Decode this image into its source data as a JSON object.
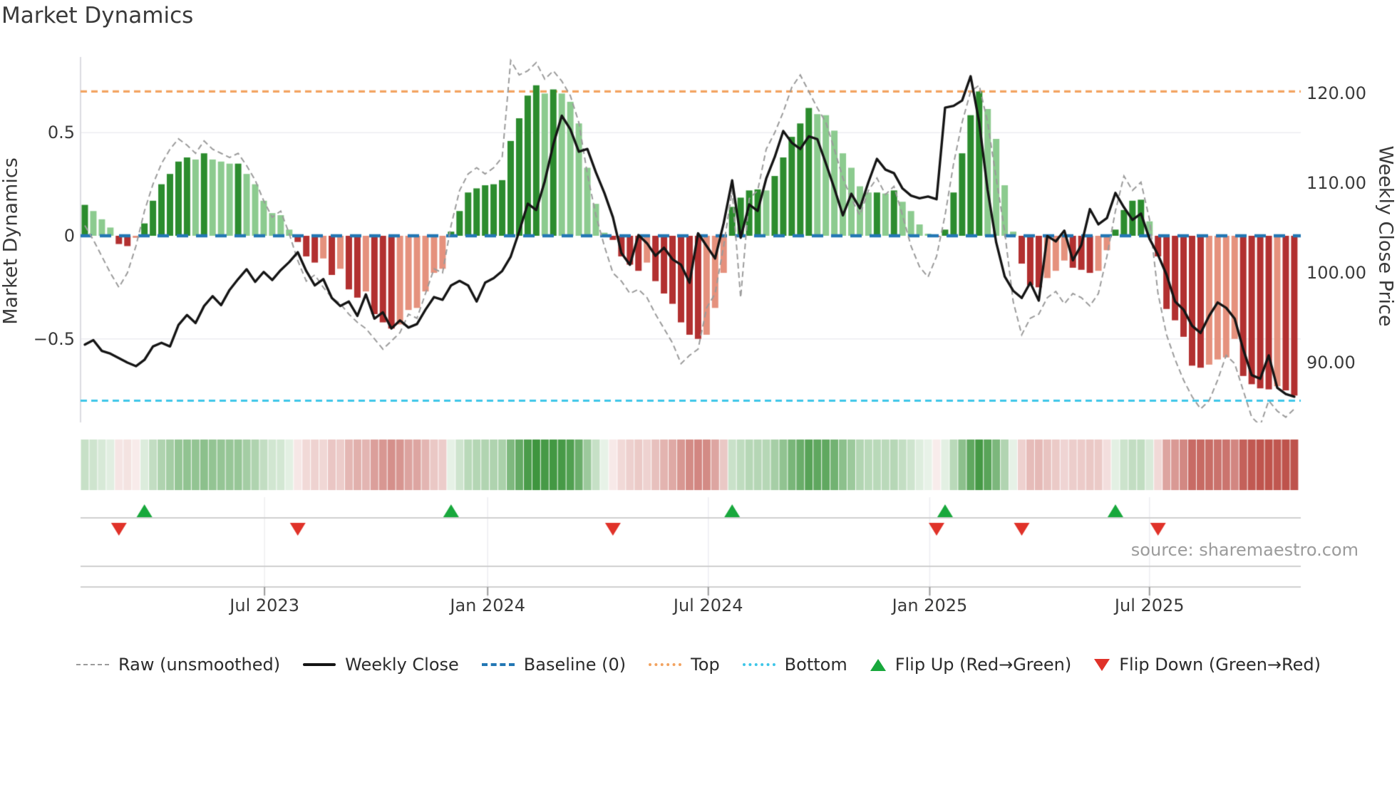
{
  "title": "Market Dynamics",
  "source_note": "source: sharemaestro.com",
  "axes": {
    "left_title": "Market Dynamics",
    "right_title": "Weekly Close Price",
    "left_ticks": [
      {
        "label": "0.5",
        "value": 0.5
      },
      {
        "label": "0",
        "value": 0
      },
      {
        "label": "−0.5",
        "value": -0.5
      }
    ],
    "right_ticks": [
      {
        "label": "120.00",
        "value": 120
      },
      {
        "label": "110.00",
        "value": 110
      },
      {
        "label": "100.00",
        "value": 100
      },
      {
        "label": "90.00",
        "value": 90
      }
    ],
    "x_ticks": [
      {
        "label": "Jul 2023",
        "week": 21.1
      },
      {
        "label": "Jan 2024",
        "week": 47.3
      },
      {
        "label": "Jul 2024",
        "week": 73.2
      },
      {
        "label": "Jan 2025",
        "week": 99.2
      },
      {
        "label": "Jul 2025",
        "week": 125.0
      }
    ]
  },
  "legend": [
    {
      "id": "raw",
      "label": "Raw (unsmoothed)",
      "swatch": "sw-dash-gray"
    },
    {
      "id": "weekly-close",
      "label": "Weekly Close",
      "swatch": "sw-solid-black"
    },
    {
      "id": "baseline",
      "label": "Baseline (0)",
      "swatch": "sw-dash-blue"
    },
    {
      "id": "top",
      "label": "Top",
      "swatch": "sw-dot-orange"
    },
    {
      "id": "bottom",
      "label": "Bottom",
      "swatch": "sw-dot-cyan"
    },
    {
      "id": "flip-up",
      "label": "Flip Up (Red→Green)",
      "swatch": "sw-tri-up"
    },
    {
      "id": "flip-down",
      "label": "Flip Down (Green→Red)",
      "swatch": "sw-tri-down"
    }
  ],
  "colors": {
    "bar_dark_green": "#2c8c2e",
    "bar_light_green": "#8ccb8f",
    "bar_dark_red": "#b23030",
    "bar_light_red": "#e5917d",
    "heat_green": "#2f8d2f",
    "heat_red": "#bb4a42",
    "top_line": "#f2a360",
    "bottom_line": "#3ec6e8",
    "baseline_line": "#2377b4",
    "raw_line": "#9b9b9b",
    "close_line": "#151515",
    "flip_up": "#18a83c",
    "flip_down": "#e03229",
    "grid": "#ededf1",
    "spine": "#d9d9de",
    "panel_line": "#cfcfcf",
    "text": "#3a3a3a"
  },
  "chart_data": {
    "type": "bar+line",
    "x_unit": "week",
    "n_weeks": 143,
    "baseline": 0,
    "top_threshold": 0.7,
    "bottom_threshold": -0.8,
    "osc_axis": {
      "min": -0.905,
      "max": 0.867,
      "ticks": [
        0.5,
        0,
        -0.5
      ],
      "grid": true
    },
    "price_axis": {
      "min": 83.2,
      "max": 124.0,
      "ticks": [
        120,
        110,
        100,
        90
      ],
      "grid": false
    },
    "legend_position": "bottom-center",
    "oscillator_values": [
      0.15,
      0.12,
      0.08,
      0.04,
      -0.04,
      -0.05,
      -0.01,
      0.06,
      0.17,
      0.25,
      0.3,
      0.36,
      0.38,
      0.37,
      0.4,
      0.37,
      0.36,
      0.35,
      0.35,
      0.3,
      0.25,
      0.17,
      0.11,
      0.1,
      0.03,
      -0.03,
      -0.1,
      -0.13,
      -0.11,
      -0.19,
      -0.16,
      -0.26,
      -0.3,
      -0.27,
      -0.38,
      -0.42,
      -0.45,
      -0.43,
      -0.36,
      -0.35,
      -0.27,
      -0.18,
      -0.16,
      0.02,
      0.12,
      0.21,
      0.23,
      0.245,
      0.25,
      0.27,
      0.46,
      0.57,
      0.68,
      0.73,
      0.69,
      0.71,
      0.69,
      0.65,
      0.545,
      0.33,
      0.155,
      0.015,
      -0.02,
      -0.1,
      -0.14,
      -0.17,
      -0.13,
      -0.22,
      -0.28,
      -0.33,
      -0.42,
      -0.48,
      -0.5,
      -0.48,
      -0.35,
      -0.18,
      0.14,
      0.185,
      0.22,
      0.225,
      0.22,
      0.29,
      0.38,
      0.48,
      0.545,
      0.62,
      0.59,
      0.585,
      0.51,
      0.4,
      0.33,
      0.24,
      0.21,
      0.21,
      0.205,
      0.22,
      0.165,
      0.12,
      0.055,
      0.01,
      -0.005,
      0.03,
      0.21,
      0.4,
      0.585,
      0.7,
      0.615,
      0.47,
      0.245,
      0.02,
      -0.135,
      -0.24,
      -0.25,
      -0.205,
      -0.17,
      -0.12,
      -0.155,
      -0.165,
      -0.18,
      -0.17,
      -0.07,
      0.03,
      0.125,
      0.17,
      0.175,
      0.07,
      -0.1,
      -0.355,
      -0.41,
      -0.49,
      -0.63,
      -0.64,
      -0.625,
      -0.6,
      -0.59,
      -0.5,
      -0.68,
      -0.72,
      -0.74,
      -0.745,
      -0.73,
      -0.75,
      -0.775
    ],
    "weekly_close_values": [
      92.0,
      92.5,
      91.3,
      91.0,
      90.5,
      90.0,
      89.6,
      90.3,
      91.8,
      92.2,
      91.8,
      94.2,
      95.3,
      94.4,
      96.3,
      97.4,
      96.4,
      98.1,
      99.3,
      100.4,
      99.0,
      100.1,
      99.2,
      100.3,
      101.2,
      102.3,
      100.2,
      98.6,
      99.3,
      97.2,
      96.3,
      96.8,
      95.2,
      97.6,
      94.9,
      95.6,
      93.8,
      94.7,
      93.9,
      94.3,
      95.9,
      97.3,
      97.0,
      98.6,
      99.1,
      98.6,
      96.8,
      98.9,
      99.4,
      100.2,
      101.8,
      104.6,
      107.7,
      107.0,
      110.2,
      114.3,
      117.5,
      116.0,
      113.5,
      113.8,
      111.2,
      108.9,
      106.2,
      102.2,
      100.9,
      104.2,
      103.3,
      101.9,
      102.8,
      101.5,
      100.9,
      98.9,
      104.4,
      103.0,
      101.6,
      105.5,
      110.3,
      103.9,
      107.6,
      106.9,
      110.5,
      112.9,
      115.8,
      114.5,
      113.8,
      115.2,
      114.9,
      112.2,
      109.4,
      106.4,
      108.8,
      107.2,
      110.1,
      112.7,
      111.5,
      111.1,
      109.4,
      108.6,
      108.3,
      108.5,
      108.2,
      118.4,
      118.6,
      119.2,
      121.9,
      116.8,
      109.2,
      103.4,
      99.6,
      98.0,
      97.2,
      98.9,
      96.9,
      104.1,
      103.5,
      104.7,
      101.4,
      103.1,
      107.1,
      105.4,
      106.1,
      108.9,
      107.3,
      105.9,
      106.6,
      103.8,
      102.0,
      99.8,
      96.8,
      95.9,
      94.1,
      93.3,
      95.2,
      96.7,
      96.1,
      94.9,
      91.5,
      88.6,
      88.2,
      90.8,
      87.2,
      86.5,
      86.2
    ],
    "raw_values": [
      0.05,
      -0.02,
      -0.1,
      -0.18,
      -0.25,
      -0.18,
      -0.05,
      0.12,
      0.25,
      0.35,
      0.42,
      0.47,
      0.44,
      0.4,
      0.46,
      0.42,
      0.4,
      0.38,
      0.4,
      0.34,
      0.27,
      0.17,
      0.09,
      0.12,
      0.01,
      -0.12,
      -0.22,
      -0.19,
      -0.25,
      -0.3,
      -0.33,
      -0.38,
      -0.42,
      -0.45,
      -0.5,
      -0.55,
      -0.51,
      -0.47,
      -0.38,
      -0.4,
      -0.28,
      -0.16,
      -0.18,
      0.05,
      0.22,
      0.3,
      0.33,
      0.3,
      0.33,
      0.38,
      0.85,
      0.78,
      0.8,
      0.84,
      0.76,
      0.8,
      0.75,
      0.68,
      0.55,
      0.3,
      0.1,
      -0.05,
      -0.18,
      -0.22,
      -0.28,
      -0.26,
      -0.3,
      -0.38,
      -0.45,
      -0.52,
      -0.62,
      -0.58,
      -0.55,
      -0.35,
      -0.28,
      -0.05,
      0.22,
      -0.3,
      0.18,
      0.22,
      0.42,
      0.5,
      0.6,
      0.72,
      0.78,
      0.7,
      0.62,
      0.55,
      0.42,
      0.28,
      0.18,
      0.1,
      0.22,
      0.28,
      0.2,
      0.24,
      0.1,
      -0.05,
      -0.15,
      -0.2,
      -0.1,
      0.1,
      0.35,
      0.55,
      0.7,
      0.73,
      0.55,
      0.28,
      0.02,
      -0.32,
      -0.48,
      -0.4,
      -0.38,
      -0.3,
      -0.27,
      -0.33,
      -0.28,
      -0.3,
      -0.34,
      -0.28,
      -0.1,
      0.12,
      0.29,
      0.22,
      0.26,
      0.08,
      -0.28,
      -0.48,
      -0.6,
      -0.7,
      -0.78,
      -0.84,
      -0.8,
      -0.7,
      -0.58,
      -0.62,
      -0.75,
      -0.88,
      -0.92,
      -0.8,
      -0.85,
      -0.88,
      -0.84
    ],
    "flip_up_weeks": [
      7,
      43,
      76,
      101,
      121
    ],
    "flip_down_weeks": [
      4,
      25,
      62,
      100,
      110,
      126
    ]
  }
}
